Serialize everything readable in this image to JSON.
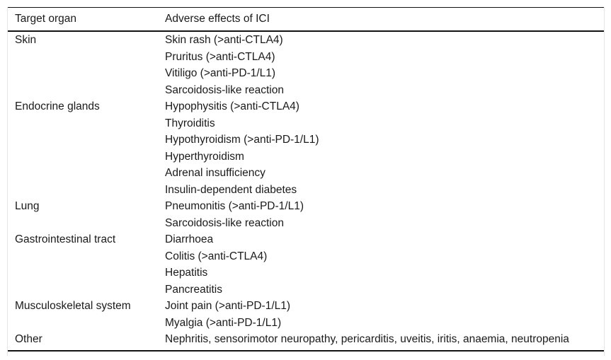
{
  "table": {
    "columns": [
      "Target organ",
      "Adverse effects of ICI"
    ],
    "rows": [
      {
        "organ": "Skin",
        "effects": [
          "Skin rash (>anti-CTLA4)",
          "Pruritus (>anti-CTLA4)",
          "Vitiligo (>anti-PD-1/L1)",
          "Sarcoidosis-like reaction"
        ]
      },
      {
        "organ": "Endocrine glands",
        "effects": [
          "Hypophysitis (>anti-CTLA4)",
          "Thyroiditis",
          "Hypothyroidism (>anti-PD-1/L1)",
          "Hyperthyroidism",
          "Adrenal insufficiency",
          "Insulin-dependent diabetes"
        ]
      },
      {
        "organ": "Lung",
        "effects": [
          "Pneumonitis (>anti-PD-1/L1)",
          "Sarcoidosis-like reaction"
        ]
      },
      {
        "organ": "Gastrointestinal tract",
        "effects": [
          "Diarrhoea",
          "Colitis (>anti-CTLA4)",
          "Hepatitis",
          "Pancreatitis"
        ]
      },
      {
        "organ": "Musculoskeletal system",
        "effects": [
          "Joint pain (>anti-PD-1/L1)",
          "Myalgia (>anti-PD-1/L1)"
        ]
      },
      {
        "organ": "Other",
        "effects": [
          "Nephritis, sensorimotor neuropathy, pericarditis, uveitis, iritis, anaemia, neutropenia"
        ]
      }
    ],
    "colors": {
      "rule_dark": "#121212",
      "rule_light": "#e6e6e6",
      "text": "#1a1a1a",
      "background": "#ffffff"
    }
  }
}
